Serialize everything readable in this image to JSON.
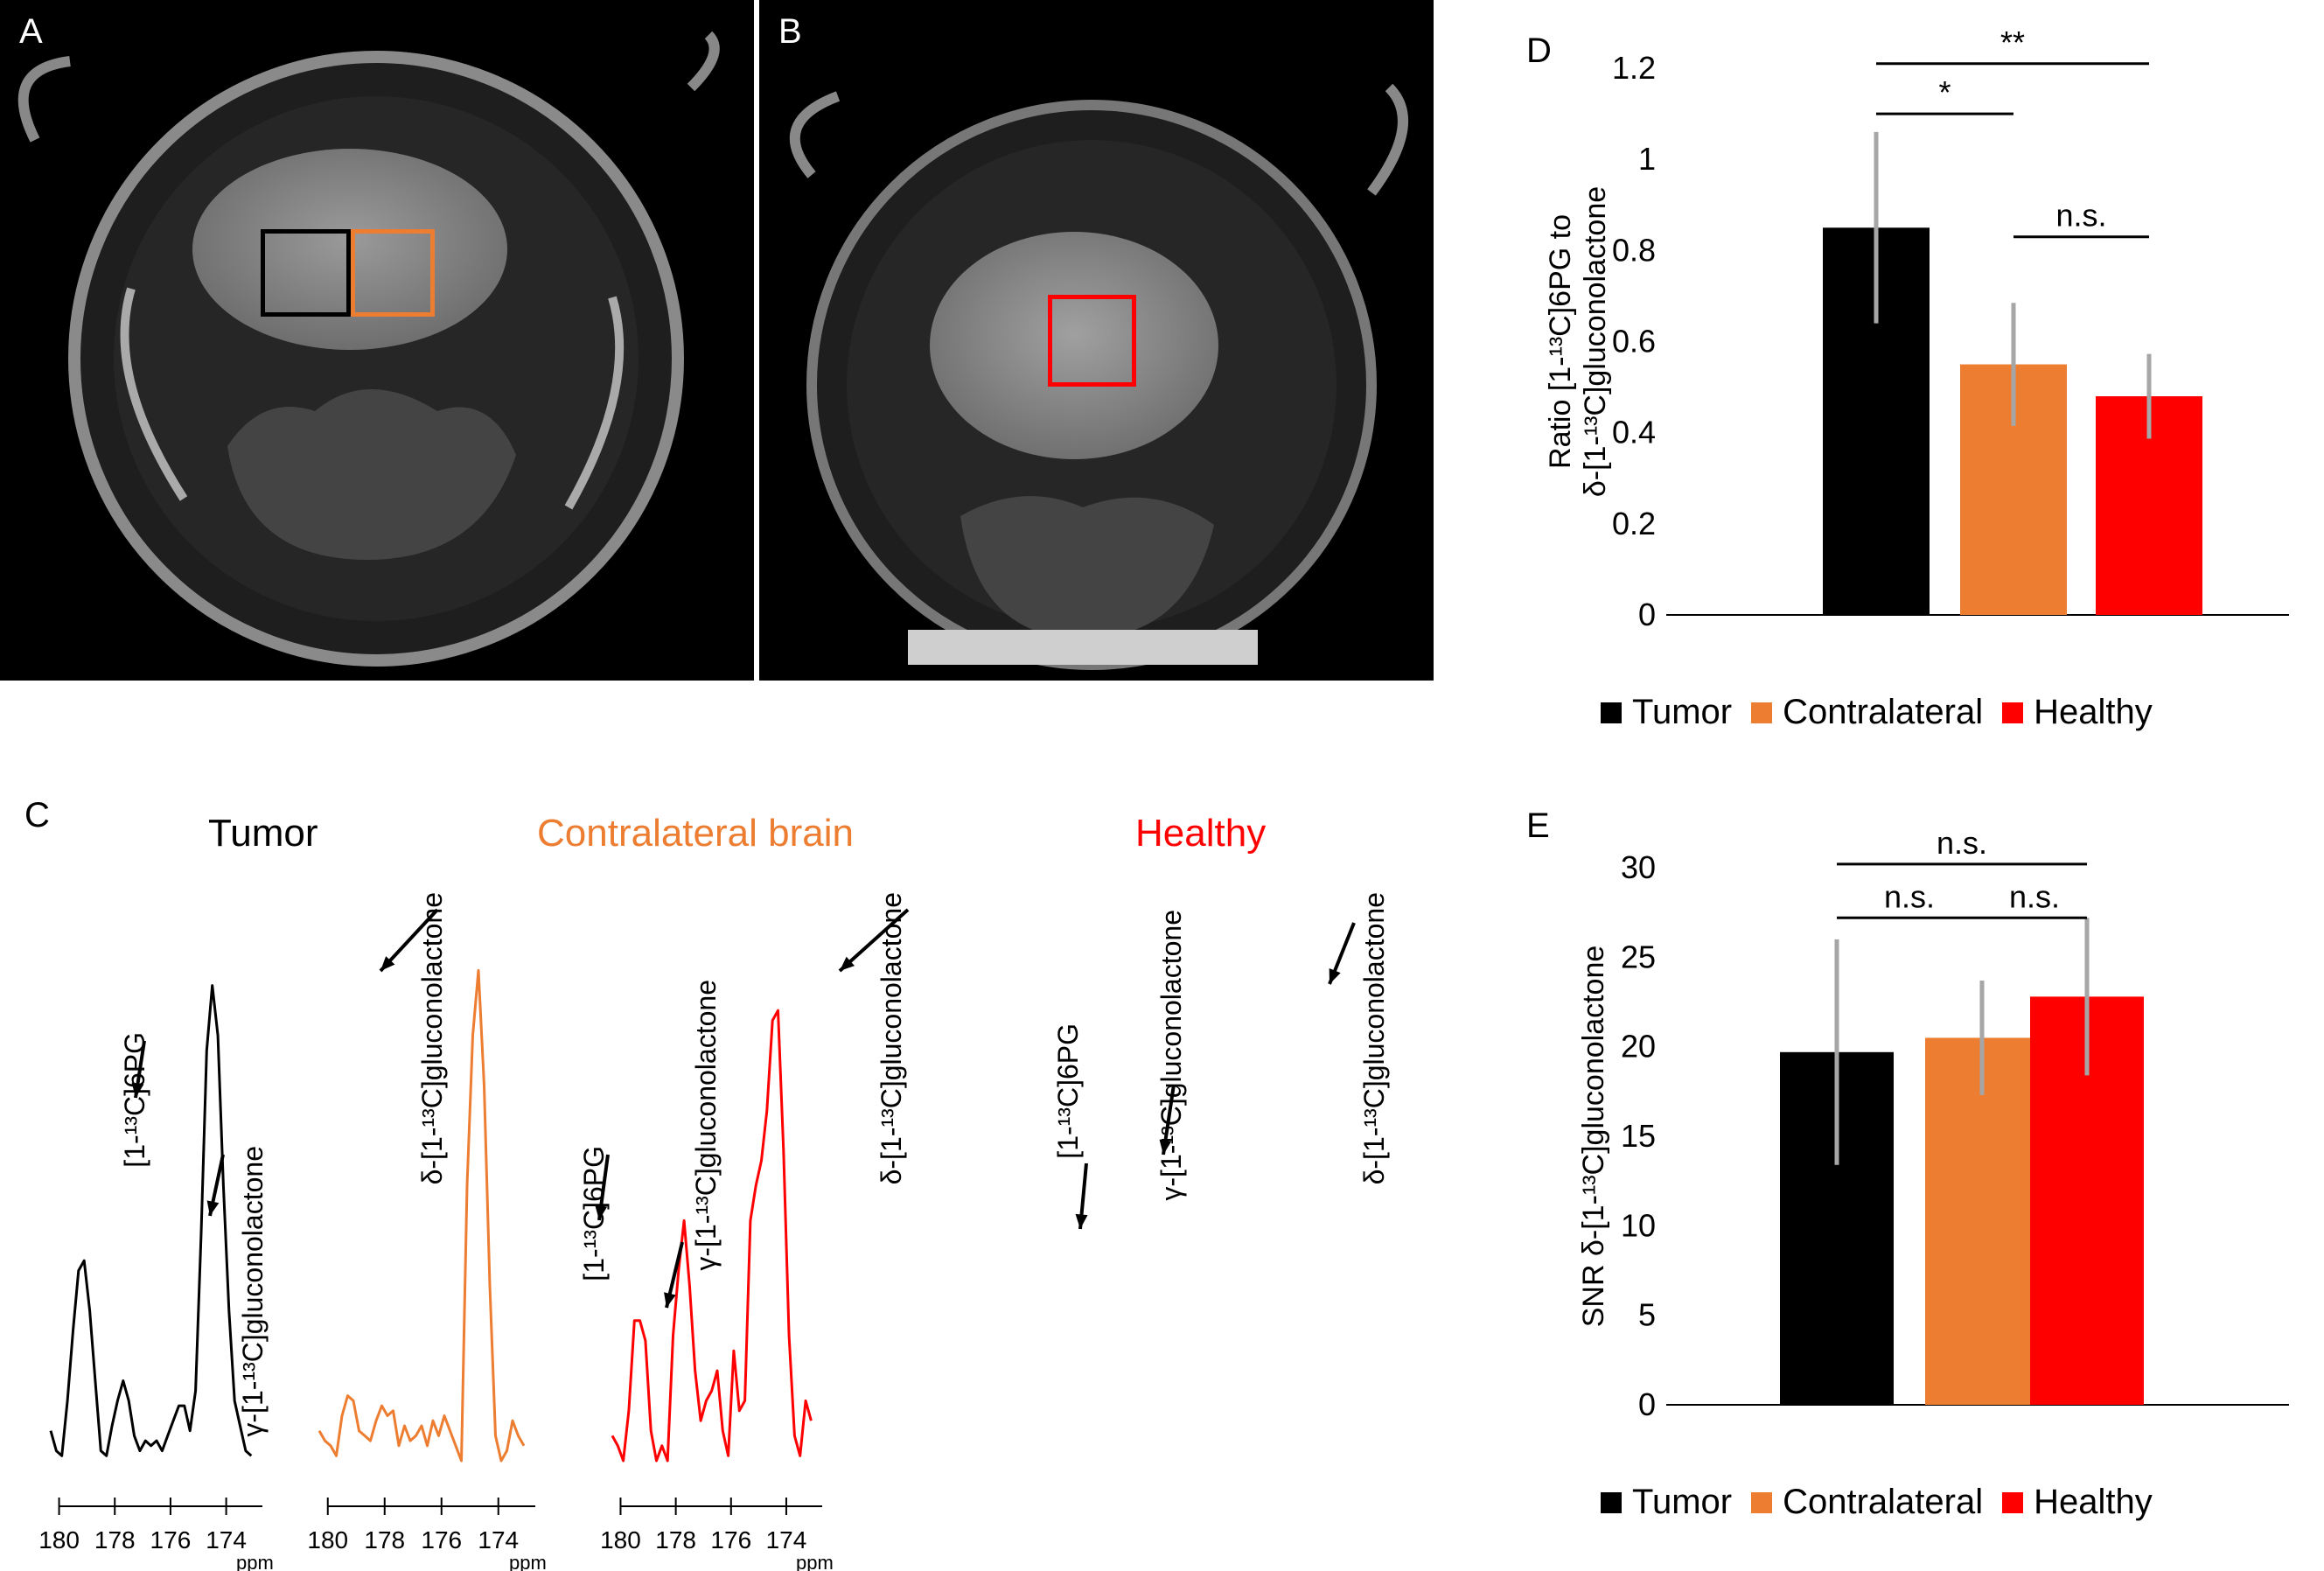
{
  "panels": {
    "A": {
      "letter": "A",
      "roi_colors": [
        "#000000",
        "#ed7d31"
      ]
    },
    "B": {
      "letter": "B",
      "roi_colors": [
        "#ff0000"
      ]
    },
    "C": {
      "letter": "C"
    },
    "D": {
      "letter": "D"
    },
    "E": {
      "letter": "E"
    }
  },
  "colors": {
    "tumor": "#000000",
    "contralateral": "#ed7d31",
    "healthy": "#ff0000",
    "error": "#a6a6a6"
  },
  "spectra": {
    "x_ticks": [
      "180",
      "178",
      "176",
      "174"
    ],
    "x_unit": "ppm",
    "xlim": [
      180.3,
      172.7
    ],
    "items": [
      {
        "title": "Tumor",
        "color": "#000000",
        "peaks": [
          {
            "label": "[1-¹³C]6PG"
          },
          {
            "label": "γ-[1-¹³C]gluconolactone"
          },
          {
            "label": "δ-[1-¹³C]gluconolactone"
          }
        ],
        "x": [
          180.3,
          180.1,
          179.9,
          179.7,
          179.5,
          179.3,
          179.1,
          178.9,
          178.7,
          178.5,
          178.3,
          178.1,
          177.9,
          177.7,
          177.5,
          177.3,
          177.1,
          176.9,
          176.7,
          176.5,
          176.3,
          176.1,
          175.9,
          175.7,
          175.5,
          175.3,
          175.1,
          174.9,
          174.7,
          174.5,
          174.3,
          174.1,
          173.9,
          173.7,
          173.5,
          173.3,
          173.1
        ],
        "y": [
          0.06,
          0.02,
          0.01,
          0.12,
          0.26,
          0.38,
          0.4,
          0.3,
          0.16,
          0.02,
          0.01,
          0.07,
          0.12,
          0.16,
          0.12,
          0.05,
          0.02,
          0.04,
          0.03,
          0.04,
          0.02,
          0.05,
          0.08,
          0.11,
          0.11,
          0.06,
          0.14,
          0.45,
          0.82,
          0.95,
          0.85,
          0.55,
          0.3,
          0.12,
          0.07,
          0.02,
          0.01
        ]
      },
      {
        "title": "Contralateral brain",
        "color": "#ed7d31",
        "peaks": [
          {
            "label": "[1-¹³C]6PG"
          },
          {
            "label": "γ-[1-¹³C]gluconolactone"
          },
          {
            "label": "δ-[1-¹³C]gluconolactone"
          }
        ],
        "x": [
          180.3,
          180.1,
          179.9,
          179.7,
          179.5,
          179.3,
          179.1,
          178.9,
          178.7,
          178.5,
          178.3,
          178.1,
          177.9,
          177.7,
          177.5,
          177.3,
          177.1,
          176.9,
          176.7,
          176.5,
          176.3,
          176.1,
          175.9,
          175.7,
          175.5,
          175.3,
          175.1,
          174.9,
          174.7,
          174.5,
          174.3,
          174.1,
          173.9,
          173.7,
          173.5,
          173.3,
          173.1
        ],
        "y": [
          0.06,
          0.04,
          0.03,
          0.01,
          0.09,
          0.13,
          0.12,
          0.06,
          0.05,
          0.04,
          0.08,
          0.11,
          0.09,
          0.1,
          0.03,
          0.07,
          0.04,
          0.05,
          0.07,
          0.03,
          0.08,
          0.05,
          0.09,
          0.06,
          0.03,
          0.0,
          0.55,
          0.85,
          0.98,
          0.75,
          0.35,
          0.05,
          0.0,
          0.02,
          0.08,
          0.05,
          0.03
        ]
      },
      {
        "title": "Healthy",
        "color": "#ff0000",
        "peaks": [
          {
            "label": "[1-¹³C]6PG"
          },
          {
            "label": "γ-[1-¹³C]gluconolactone"
          },
          {
            "label": "δ-[1-¹³C]gluconolactone"
          }
        ],
        "x": [
          180.3,
          180.1,
          179.9,
          179.7,
          179.5,
          179.3,
          179.1,
          178.9,
          178.7,
          178.5,
          178.3,
          178.1,
          177.9,
          177.7,
          177.5,
          177.3,
          177.1,
          176.9,
          176.7,
          176.5,
          176.3,
          176.1,
          175.9,
          175.7,
          175.5,
          175.3,
          175.1,
          174.9,
          174.7,
          174.5,
          174.3,
          174.1,
          173.9,
          173.7,
          173.5,
          173.3,
          173.1
        ],
        "y": [
          0.05,
          0.03,
          0.0,
          0.1,
          0.28,
          0.28,
          0.24,
          0.06,
          0.0,
          0.03,
          0.0,
          0.25,
          0.38,
          0.48,
          0.35,
          0.18,
          0.08,
          0.12,
          0.14,
          0.18,
          0.06,
          0.01,
          0.22,
          0.1,
          0.12,
          0.48,
          0.55,
          0.6,
          0.7,
          0.88,
          0.9,
          0.62,
          0.25,
          0.05,
          0.01,
          0.12,
          0.08
        ]
      }
    ]
  },
  "chart_data": [
    {
      "type": "bar",
      "title": "",
      "xlabel": "",
      "ylabel": "Ratio [1-¹³C]6PG to δ-[1-¹³C]gluconolactone",
      "ylabel_lines": [
        "Ratio [1-¹³C]6PG to",
        "δ-[1-¹³C]gluconolactone"
      ],
      "categories": [
        "Tumor",
        "Contralateral",
        "Healthy"
      ],
      "values": [
        0.85,
        0.55,
        0.48
      ],
      "error": [
        0.21,
        0.135,
        0.093
      ],
      "ylim": [
        0,
        1.2
      ],
      "yticks": [
        "0",
        "0.2",
        "0.4",
        "0.6",
        "0.8",
        "1",
        "1.2"
      ],
      "significance": [
        {
          "from": 0,
          "to": 2,
          "label": "**",
          "y": 1.21
        },
        {
          "from": 0,
          "to": 1,
          "label": "*",
          "y": 1.1
        },
        {
          "from": 1,
          "to": 2,
          "label": "n.s.",
          "y": 0.83
        }
      ],
      "legend": [
        "Tumor",
        "Contralateral",
        "Healthy"
      ]
    },
    {
      "type": "bar",
      "title": "",
      "xlabel": "",
      "ylabel": "SNR δ-[1-¹³C]gluconolactone",
      "ylabel_lines": [
        "SNR δ-[1-¹³C]gluconolactone"
      ],
      "categories": [
        "Tumor",
        "Contralateral",
        "Healthy"
      ],
      "values": [
        19.7,
        20.5,
        22.8
      ],
      "error": [
        6.3,
        3.2,
        4.4
      ],
      "ylim": [
        0,
        30
      ],
      "yticks": [
        "0",
        "5",
        "10",
        "15",
        "20",
        "25",
        "30"
      ],
      "significance": [
        {
          "from": 0,
          "to": 2,
          "label": "n.s.",
          "y": 30.2
        },
        {
          "from": 0,
          "to": 1,
          "label": "n.s.",
          "y": 27.2
        },
        {
          "from": 1,
          "to": 2,
          "label": "n.s.",
          "y": 27.2
        }
      ],
      "legend": [
        "Tumor",
        "Contralateral",
        "Healthy"
      ]
    }
  ]
}
